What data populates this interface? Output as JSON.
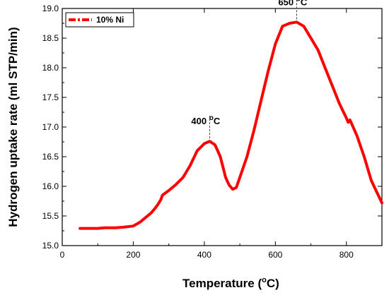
{
  "chart_data": {
    "type": "line",
    "xlabel": "Temperature (",
    "xlabel_unit_degree": "o",
    "xlabel_unit_tail": "C)",
    "ylabel": "Hydrogen uptake rate  (ml STP/min)",
    "xlim": [
      0,
      900
    ],
    "ylim": [
      15.0,
      19.0
    ],
    "xticks": [
      0,
      200,
      400,
      600,
      800
    ],
    "yticks": [
      15.0,
      15.5,
      16.0,
      16.5,
      17.0,
      17.5,
      18.0,
      18.5,
      19.0
    ],
    "ytick_labels": [
      "15.0",
      "15.5",
      "16.0",
      "16.5",
      "17.0",
      "17.5",
      "18.0",
      "18.5",
      "19.0"
    ],
    "legend_position": "top-left",
    "series": [
      {
        "name": "10% Ni",
        "color": "#ff0000",
        "x": [
          50,
          80,
          100,
          120,
          150,
          170,
          200,
          220,
          240,
          250,
          260,
          270,
          278,
          282,
          300,
          320,
          340,
          360,
          380,
          400,
          415,
          430,
          445,
          460,
          470,
          480,
          490,
          500,
          520,
          540,
          560,
          580,
          600,
          620,
          640,
          660,
          680,
          700,
          720,
          740,
          760,
          780,
          800,
          805,
          810,
          830,
          850,
          870,
          900
        ],
        "y": [
          15.29,
          15.29,
          15.29,
          15.3,
          15.3,
          15.31,
          15.33,
          15.4,
          15.5,
          15.55,
          15.62,
          15.7,
          15.78,
          15.85,
          15.93,
          16.03,
          16.15,
          16.35,
          16.6,
          16.72,
          16.76,
          16.7,
          16.5,
          16.15,
          16.02,
          15.95,
          15.98,
          16.15,
          16.5,
          16.95,
          17.45,
          17.95,
          18.4,
          18.7,
          18.75,
          18.77,
          18.7,
          18.5,
          18.3,
          18.0,
          17.7,
          17.4,
          17.15,
          17.08,
          17.12,
          16.85,
          16.5,
          16.1,
          15.72
        ]
      }
    ],
    "annotations": [
      {
        "text": "400 ",
        "degree": "o",
        "unit": "C",
        "x": 415,
        "y": 16.76
      },
      {
        "text": "650 ",
        "degree": "o",
        "unit": "C",
        "x": 660,
        "y": 18.77
      }
    ]
  }
}
